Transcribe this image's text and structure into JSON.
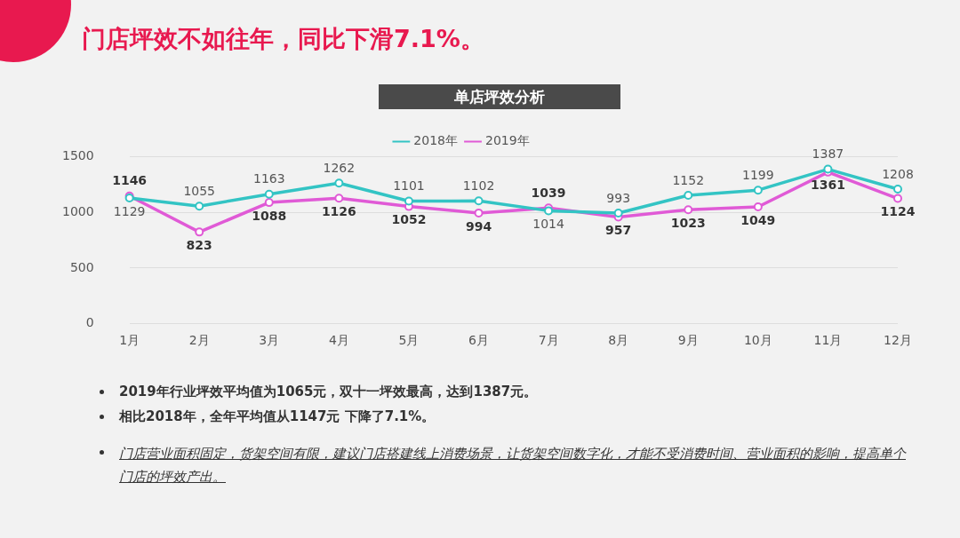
{
  "chart_data": {
    "type": "line",
    "title": "门店坪效不如往年，同比下滑7.1%。",
    "subtitle": "单店坪效分析",
    "categories": [
      "1月",
      "2月",
      "3月",
      "4月",
      "5月",
      "6月",
      "7月",
      "8月",
      "9月",
      "10月",
      "11月",
      "12月"
    ],
    "series": [
      {
        "name": "2018年",
        "color": "#33c4c4",
        "values": [
          1129,
          1055,
          1163,
          1262,
          1101,
          1102,
          1014,
          993,
          1152,
          1199,
          1387,
          1208
        ]
      },
      {
        "name": "2019年",
        "color": "#e05ad6",
        "values": [
          1146,
          823,
          1088,
          1126,
          1052,
          994,
          1039,
          957,
          1023,
          1049,
          1361,
          1124
        ]
      }
    ],
    "ylim": [
      0,
      1500
    ],
    "yticks": [
      0,
      500,
      1000,
      1500
    ],
    "grid": "y",
    "legend": "top",
    "marker": "circle",
    "data_labels": true,
    "annotations": [
      "2019年行业坪效平均值为1065元，双十一坪效最高，达到1387元。",
      "相比2018年，全年平均值从1147元 下降了7.1%。",
      "门店营业面积固定，货架空间有限，建议门店搭建线上消费场景，让货架空间数字化，才能不受消费时间、营业面积的影响，提高单个门店的坪效产出。"
    ]
  }
}
